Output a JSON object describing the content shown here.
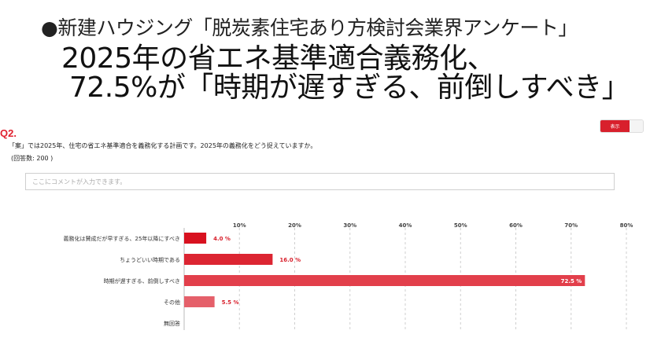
{
  "headline": {
    "line1": "●新建ハウジング「脱炭素住宅あり方検討会業界アンケート」",
    "line2": "2025年の省エネ基準適合義務化、",
    "line3": "72.5%が「時期が遅すぎる、前倒しすべき」"
  },
  "question": {
    "number": "Q2.",
    "text": "「案」では2025年、住宅の省エネ基準適合を義務化する計画です。2025年の義務化をどう捉えていますか。",
    "count": "(回答数: 200 )"
  },
  "toggle": {
    "label": "表示"
  },
  "comment": {
    "placeholder": "ここにコメントが入力できます。"
  },
  "colors": {
    "accent": "#d8202c",
    "bars": [
      "#d8111f",
      "#dc2532",
      "#e23f4b",
      "#e5606a",
      "#e5606a"
    ]
  },
  "chart_data": {
    "type": "bar",
    "orientation": "horizontal",
    "categories": [
      "義務化は賛成だが早すぎる、25年以降にすべき",
      "ちょうどいい時期である",
      "時期が遅すぎる、前倒しすべき",
      "その他",
      "無回答"
    ],
    "values": [
      4.0,
      16.0,
      72.5,
      5.5,
      0
    ],
    "value_labels": [
      "4.0 %",
      "16.0 %",
      "72.5 %",
      "5.5 %",
      ""
    ],
    "xlim": [
      0,
      80
    ],
    "ticks": [
      10,
      20,
      30,
      40,
      50,
      60,
      70,
      80
    ],
    "tick_labels": [
      "10%",
      "20%",
      "30%",
      "40%",
      "50%",
      "60%",
      "70%",
      "80%"
    ],
    "grid": "vertical dashed"
  }
}
